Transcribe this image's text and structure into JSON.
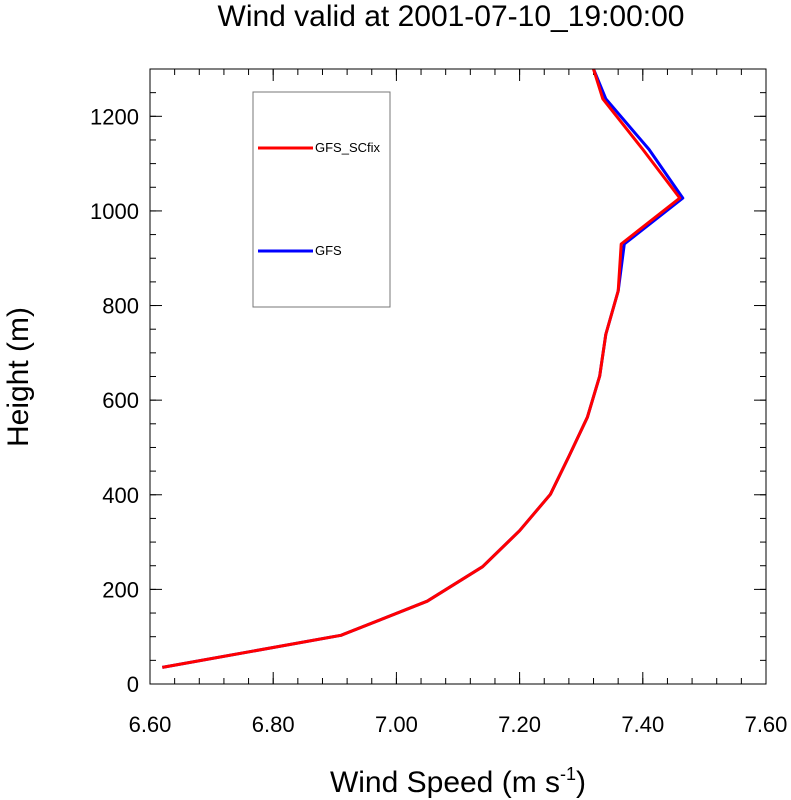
{
  "chart_data": {
    "type": "line",
    "title": "Wind valid at 2001-07-10_19:00:00",
    "xlabel": "Wind Speed (m s",
    "xlabel_superscript": "-1",
    "xlabel_suffix": ")",
    "ylabel": "Height (m)",
    "xlim": [
      6.6,
      7.6
    ],
    "ylim": [
      0,
      1300
    ],
    "xticks": [
      "6.60",
      "6.80",
      "7.00",
      "7.20",
      "7.40",
      "7.60"
    ],
    "yticks": [
      "0",
      "200",
      "400",
      "600",
      "800",
      "1000",
      "1200"
    ],
    "grid": false,
    "legend_placement": "top-left",
    "series": [
      {
        "name": "GFS",
        "color": "#0000ff",
        "x": [
          6.62,
          6.91,
          7.05,
          7.14,
          7.2,
          7.25,
          7.28,
          7.31,
          7.33,
          7.34,
          7.36,
          7.37,
          7.465,
          7.41,
          7.34,
          7.32
        ],
        "y": [
          35,
          103,
          175,
          248,
          324,
          401,
          481,
          564,
          651,
          739,
          831,
          930,
          1027,
          1130,
          1237,
          1300
        ]
      },
      {
        "name": "GFS_SCfix",
        "color": "#ff0000",
        "x": [
          6.62,
          6.91,
          7.05,
          7.14,
          7.2,
          7.25,
          7.28,
          7.31,
          7.33,
          7.34,
          7.36,
          7.365,
          7.46,
          7.4,
          7.335,
          7.32
        ],
        "y": [
          35,
          103,
          175,
          248,
          324,
          401,
          481,
          564,
          651,
          739,
          831,
          930,
          1027,
          1130,
          1237,
          1300
        ]
      }
    ],
    "legend": [
      {
        "label": "GFS_SCfix",
        "color": "#ff0000"
      },
      {
        "label": "GFS",
        "color": "#0000ff"
      }
    ]
  }
}
